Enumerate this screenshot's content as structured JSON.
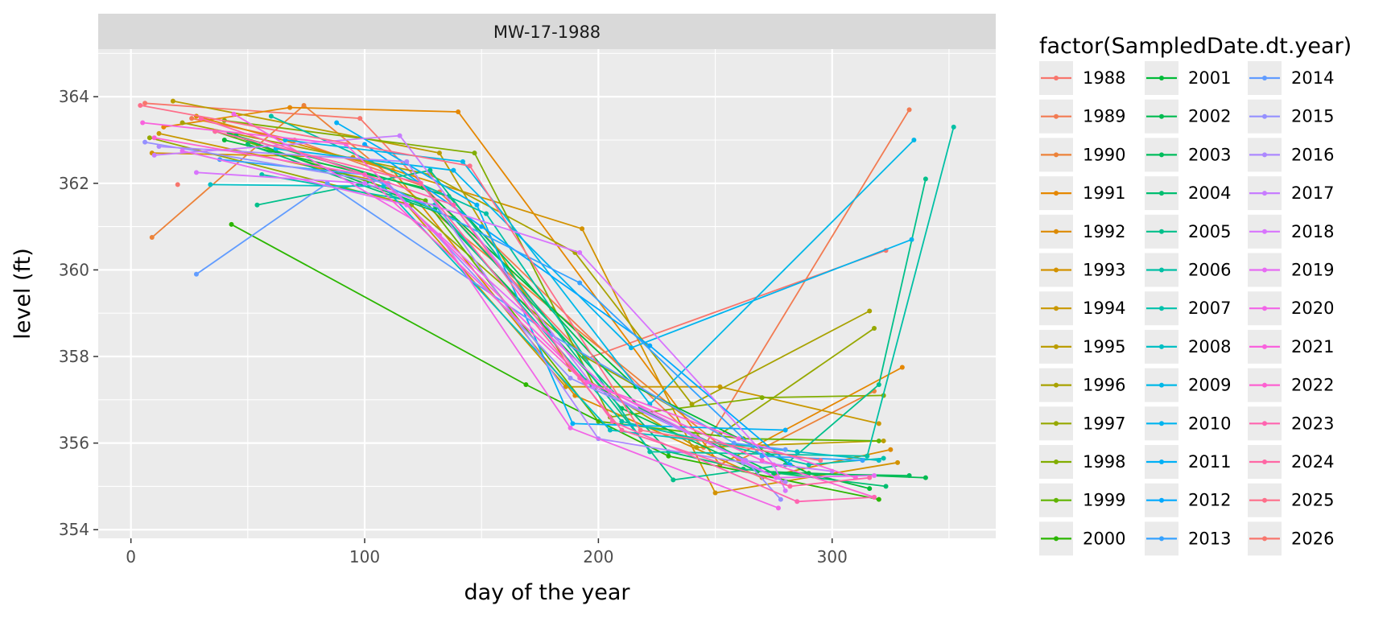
{
  "chart_data": {
    "type": "line",
    "facet_label": "MW-17-1988",
    "xlabel": "day of the year",
    "ylabel": "level (ft)",
    "xlim": [
      -14,
      370
    ],
    "ylim": [
      353.8,
      365.1
    ],
    "x_ticks": [
      0,
      100,
      200,
      300
    ],
    "y_ticks": [
      354,
      356,
      358,
      360,
      362,
      364
    ],
    "x_tick_labels": [
      "0",
      "100",
      "200",
      "300"
    ],
    "y_tick_labels": [
      "354",
      "356",
      "358",
      "360",
      "362",
      "364"
    ],
    "legend_title": "factor(SampledDate.dt.year)",
    "series": [
      {
        "name": "1988",
        "color": "#f8766d",
        "points": [
          [
            6,
            363.85
          ],
          [
            98,
            363.5
          ],
          [
            195,
            357.95
          ],
          [
            323,
            360.45
          ]
        ]
      },
      {
        "name": "1989",
        "color": "#f27b52",
        "points": [
          [
            26,
            363.5
          ],
          [
            70,
            363.0
          ],
          [
            132,
            361.8
          ],
          [
            245,
            355.9
          ],
          [
            333,
            363.7
          ]
        ]
      },
      {
        "name": "1990",
        "color": "#ec8239",
        "points": [
          [
            9,
            360.75
          ],
          [
            74,
            363.8
          ],
          [
            180,
            359.1
          ],
          [
            260,
            355.6
          ],
          [
            318,
            357.2
          ]
        ]
      },
      {
        "name": "1991",
        "color": "#e58700",
        "points": [
          [
            14,
            363.3
          ],
          [
            68,
            363.75
          ],
          [
            140,
            363.65
          ],
          [
            252,
            355.5
          ],
          [
            330,
            357.75
          ]
        ]
      },
      {
        "name": "1992",
        "color": "#dc8a00",
        "points": [
          [
            28,
            363.55
          ],
          [
            112,
            362.3
          ],
          [
            190,
            357.1
          ],
          [
            270,
            355.2
          ],
          [
            325,
            355.85
          ]
        ]
      },
      {
        "name": "1993",
        "color": "#d39200",
        "points": [
          [
            9,
            362.7
          ],
          [
            95,
            362.6
          ],
          [
            193,
            360.95
          ],
          [
            250,
            354.85
          ],
          [
            328,
            355.55
          ]
        ]
      },
      {
        "name": "1994",
        "color": "#c99800",
        "points": [
          [
            12,
            363.15
          ],
          [
            110,
            362.0
          ],
          [
            186,
            357.3
          ],
          [
            252,
            357.3
          ],
          [
            320,
            356.45
          ]
        ]
      },
      {
        "name": "1995",
        "color": "#bb9d00",
        "points": [
          [
            18,
            363.9
          ],
          [
            132,
            362.7
          ],
          [
            188,
            357.7
          ],
          [
            242,
            355.9
          ],
          [
            322,
            356.05
          ]
        ]
      },
      {
        "name": "1996",
        "color": "#a8a200",
        "points": [
          [
            22,
            363.4
          ],
          [
            128,
            362.2
          ],
          [
            190,
            360.4
          ],
          [
            240,
            356.9
          ],
          [
            316,
            359.05
          ]
        ]
      },
      {
        "name": "1997",
        "color": "#96a800",
        "points": [
          [
            8,
            363.05
          ],
          [
            120,
            361.5
          ],
          [
            194,
            358.0
          ],
          [
            252,
            356.2
          ],
          [
            318,
            358.65
          ]
        ]
      },
      {
        "name": "1998",
        "color": "#81ad00",
        "points": [
          [
            40,
            363.45
          ],
          [
            147,
            362.7
          ],
          [
            205,
            356.6
          ],
          [
            270,
            357.05
          ],
          [
            322,
            357.1
          ]
        ]
      },
      {
        "name": "1999",
        "color": "#60b400",
        "points": [
          [
            36,
            363.2
          ],
          [
            126,
            361.6
          ],
          [
            200,
            356.5
          ],
          [
            262,
            356.1
          ],
          [
            320,
            356.05
          ]
        ]
      },
      {
        "name": "2000",
        "color": "#2bb600",
        "points": [
          [
            43,
            361.05
          ],
          [
            169,
            357.35
          ],
          [
            230,
            355.7
          ],
          [
            320,
            354.7
          ]
        ]
      },
      {
        "name": "2001",
        "color": "#00ba38",
        "points": [
          [
            40,
            363.0
          ],
          [
            125,
            361.9
          ],
          [
            216,
            357.3
          ],
          [
            290,
            355.3
          ],
          [
            316,
            354.95
          ]
        ]
      },
      {
        "name": "2002",
        "color": "#00bb50",
        "points": [
          [
            42,
            363.15
          ],
          [
            130,
            361.4
          ],
          [
            210,
            356.8
          ],
          [
            268,
            355.35
          ],
          [
            340,
            355.2
          ]
        ]
      },
      {
        "name": "2003",
        "color": "#00bd5c",
        "points": [
          [
            45,
            363.1
          ],
          [
            136,
            361.7
          ],
          [
            218,
            356.8
          ],
          [
            275,
            355.3
          ],
          [
            333,
            355.25
          ]
        ]
      },
      {
        "name": "2004",
        "color": "#00be70",
        "points": [
          [
            50,
            362.9
          ],
          [
            138,
            361.2
          ],
          [
            230,
            355.8
          ],
          [
            262,
            355.4
          ],
          [
            323,
            355.0
          ]
        ]
      },
      {
        "name": "2005",
        "color": "#00c08b",
        "points": [
          [
            54,
            361.5
          ],
          [
            128,
            362.3
          ],
          [
            232,
            355.15
          ],
          [
            280,
            355.5
          ],
          [
            320,
            357.35
          ],
          [
            340,
            362.1
          ]
        ]
      },
      {
        "name": "2006",
        "color": "#00c0a5",
        "points": [
          [
            60,
            363.55
          ],
          [
            152,
            361.3
          ],
          [
            222,
            355.8
          ],
          [
            315,
            355.7
          ],
          [
            352,
            363.3
          ]
        ]
      },
      {
        "name": "2007",
        "color": "#00c1ab",
        "points": [
          [
            56,
            362.2
          ],
          [
            130,
            361.5
          ],
          [
            210,
            356.5
          ],
          [
            290,
            355.5
          ],
          [
            322,
            355.65
          ]
        ]
      },
      {
        "name": "2008",
        "color": "#00bfc4",
        "points": [
          [
            34,
            361.97
          ],
          [
            108,
            361.93
          ],
          [
            205,
            356.3
          ],
          [
            285,
            355.8
          ],
          [
            320,
            355.6
          ]
        ]
      },
      {
        "name": "2009",
        "color": "#00b8e7",
        "points": [
          [
            66,
            363.0
          ],
          [
            142,
            362.5
          ],
          [
            222,
            356.9
          ],
          [
            335,
            363.0
          ]
        ]
      },
      {
        "name": "2010",
        "color": "#00b4ef",
        "points": [
          [
            62,
            362.8
          ],
          [
            138,
            362.3
          ],
          [
            214,
            358.2
          ],
          [
            334,
            360.7
          ]
        ]
      },
      {
        "name": "2011",
        "color": "#00b0f6",
        "points": [
          [
            88,
            363.4
          ],
          [
            148,
            361.5
          ],
          [
            189,
            356.45
          ],
          [
            280,
            356.3
          ]
        ]
      },
      {
        "name": "2012",
        "color": "#00a9ff",
        "points": [
          [
            100,
            362.9
          ],
          [
            150,
            361.0
          ],
          [
            222,
            358.25
          ],
          [
            282,
            355.5
          ]
        ]
      },
      {
        "name": "2013",
        "color": "#35a2ff",
        "points": [
          [
            38,
            362.55
          ],
          [
            100,
            362.2
          ],
          [
            192,
            359.7
          ],
          [
            270,
            355.7
          ],
          [
            313,
            355.6
          ]
        ]
      },
      {
        "name": "2014",
        "color": "#619cff",
        "points": [
          [
            28,
            359.9
          ],
          [
            84,
            362.0
          ],
          [
            180,
            358.5
          ],
          [
            258,
            356.0
          ],
          [
            280,
            355.85
          ]
        ]
      },
      {
        "name": "2015",
        "color": "#9590ff",
        "points": [
          [
            6,
            362.95
          ],
          [
            110,
            362.0
          ],
          [
            188,
            357.5
          ],
          [
            263,
            355.6
          ],
          [
            278,
            354.7
          ]
        ]
      },
      {
        "name": "2016",
        "color": "#ac88ff",
        "points": [
          [
            12,
            362.85
          ],
          [
            118,
            362.5
          ],
          [
            200,
            356.1
          ],
          [
            262,
            355.55
          ],
          [
            280,
            355.1
          ]
        ]
      },
      {
        "name": "2017",
        "color": "#c77cff",
        "points": [
          [
            10,
            362.65
          ],
          [
            115,
            363.1
          ],
          [
            198,
            357.3
          ],
          [
            262,
            355.6
          ],
          [
            300,
            355.35
          ]
        ]
      },
      {
        "name": "2018",
        "color": "#d874fd",
        "points": [
          [
            28,
            362.25
          ],
          [
            100,
            362.0
          ],
          [
            192,
            360.4
          ],
          [
            275,
            355.5
          ],
          [
            280,
            354.9
          ]
        ]
      },
      {
        "name": "2019",
        "color": "#e76bf3",
        "points": [
          [
            22,
            362.75
          ],
          [
            118,
            361.5
          ],
          [
            205,
            357.2
          ],
          [
            276,
            355.2
          ],
          [
            318,
            355.25
          ]
        ]
      },
      {
        "name": "2020",
        "color": "#f265e7",
        "points": [
          [
            44,
            363.6
          ],
          [
            132,
            360.8
          ],
          [
            188,
            356.35
          ],
          [
            277,
            354.5
          ]
        ]
      },
      {
        "name": "2021",
        "color": "#f962dd",
        "points": [
          [
            5,
            363.4
          ],
          [
            92,
            362.9
          ],
          [
            195,
            357.4
          ],
          [
            260,
            356.1
          ],
          [
            310,
            355.2
          ]
        ]
      },
      {
        "name": "2022",
        "color": "#fd61d1",
        "points": [
          [
            10,
            363.05
          ],
          [
            100,
            362.2
          ],
          [
            192,
            357.5
          ],
          [
            270,
            355.6
          ],
          [
            318,
            354.75
          ]
        ]
      },
      {
        "name": "2023",
        "color": "#ff64b0",
        "points": [
          [
            30,
            363.5
          ],
          [
            138,
            361.5
          ],
          [
            206,
            356.5
          ],
          [
            285,
            354.65
          ],
          [
            318,
            354.75
          ]
        ]
      },
      {
        "name": "2024",
        "color": "#ff67a4",
        "points": [
          [
            36,
            363.2
          ],
          [
            124,
            362.0
          ],
          [
            210,
            356.3
          ],
          [
            282,
            355.0
          ],
          [
            316,
            355.2
          ]
        ]
      },
      {
        "name": "2025",
        "color": "#fe6e8a",
        "points": [
          [
            4,
            363.8
          ],
          [
            145,
            362.4
          ],
          [
            218,
            356.3
          ],
          [
            295,
            355.6
          ]
        ]
      },
      {
        "name": "2026",
        "color": "#f8766d",
        "points": [
          [
            20,
            361.97
          ]
        ]
      }
    ]
  }
}
